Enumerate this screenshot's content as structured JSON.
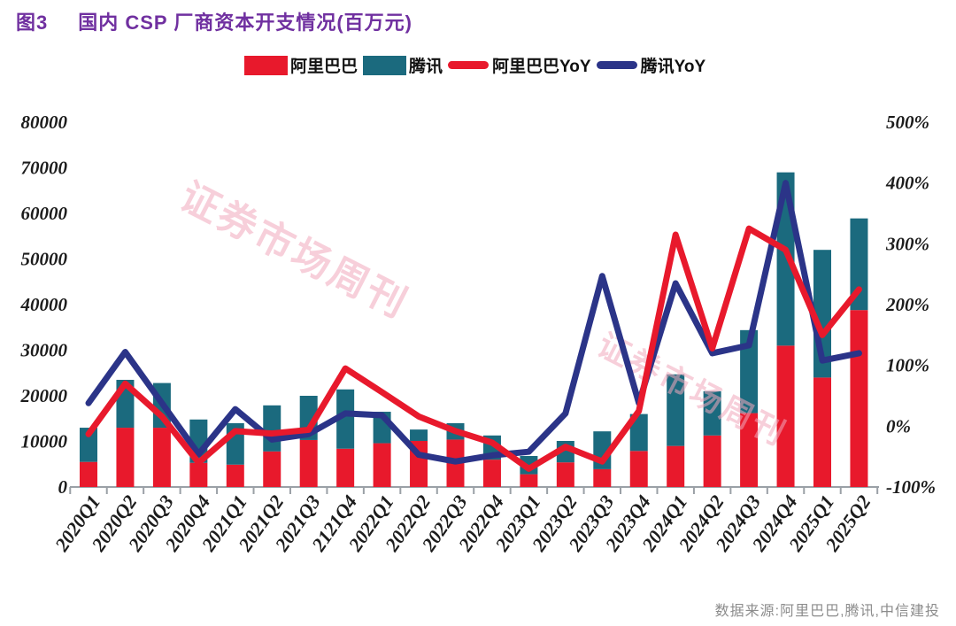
{
  "header": {
    "figure_label": "图3",
    "title": "国内 CSP 厂商资本开支情况(百万元)"
  },
  "source_note": "数据来源:阿里巴巴,腾讯,中信建投",
  "watermark": {
    "text": "证券市场周刊"
  },
  "colors": {
    "title_purple": "#7030a0",
    "alibaba_red": "#e8192c",
    "tencent_teal": "#1b6a7e",
    "yoy_navy": "#2b3488",
    "axis_text": "#1c1c1c",
    "axis_line": "#9aa0a6",
    "source_text": "#8c8c8c",
    "watermark_pink": "#f2a8bc"
  },
  "chart_data": {
    "type": "bar",
    "subtype": "stacked-bars-with-yoy-lines",
    "title": "国内 CSP 厂商资本开支情况(百万元)",
    "stacked": true,
    "grid": false,
    "legend_position": "top",
    "categories": [
      "2020Q1",
      "2020Q2",
      "2020Q3",
      "2020Q4",
      "2021Q1",
      "2021Q2",
      "2021Q3",
      "2121Q4",
      "2022Q1",
      "2022Q2",
      "2022Q3",
      "2022Q4",
      "2023Q1",
      "2023Q2",
      "2023Q3",
      "2023Q4",
      "2024Q1",
      "2024Q2",
      "2024Q3",
      "2024Q4",
      "2025Q1",
      "2025Q2"
    ],
    "bar_series": [
      {
        "key": "alibaba",
        "name": "阿里巴巴",
        "color": "#e8192c",
        "axis": "left",
        "values": [
          5500,
          13000,
          13000,
          5300,
          4900,
          7800,
          10300,
          8400,
          9600,
          10100,
          10400,
          6000,
          2800,
          5400,
          3900,
          7900,
          9000,
          11300,
          16200,
          31000,
          24000,
          38800
        ]
      },
      {
        "key": "tencent",
        "name": "腾讯",
        "color": "#1b6a7e",
        "axis": "left",
        "values": [
          7500,
          10500,
          9800,
          9500,
          9100,
          10100,
          9700,
          13000,
          6900,
          2500,
          3600,
          5300,
          4000,
          4700,
          8300,
          8100,
          15700,
          9700,
          18200,
          38000,
          28000,
          20100
        ]
      }
    ],
    "line_series": [
      {
        "key": "alibaba-yoy",
        "name": "阿里巴巴YoY",
        "color": "#e8192c",
        "axis": "right",
        "values_pct": [
          -13,
          70,
          16,
          -60,
          -8,
          -12,
          -6,
          95,
          56,
          16,
          -8,
          -27,
          -70,
          -34,
          -58,
          25,
          315,
          128,
          325,
          290,
          150,
          225
        ]
      },
      {
        "key": "tencent-yoy",
        "name": "腾讯YoY",
        "color": "#2b3488",
        "axis": "right",
        "values_pct": [
          38,
          122,
          38,
          -46,
          28,
          -22,
          -13,
          21,
          18,
          -47,
          -58,
          -48,
          -42,
          21,
          247,
          38,
          235,
          120,
          133,
          400,
          108,
          120
        ]
      }
    ],
    "left_axis": {
      "min": 0,
      "max": 80000,
      "step": 10000,
      "tick_labels": [
        "0",
        "10000",
        "20000",
        "30000",
        "40000",
        "50000",
        "60000",
        "70000",
        "80000"
      ]
    },
    "right_axis": {
      "min": -100,
      "max": 500,
      "step": 100,
      "tick_labels": [
        "-100%",
        "0%",
        "100%",
        "200%",
        "300%",
        "400%",
        "500%"
      ]
    }
  }
}
